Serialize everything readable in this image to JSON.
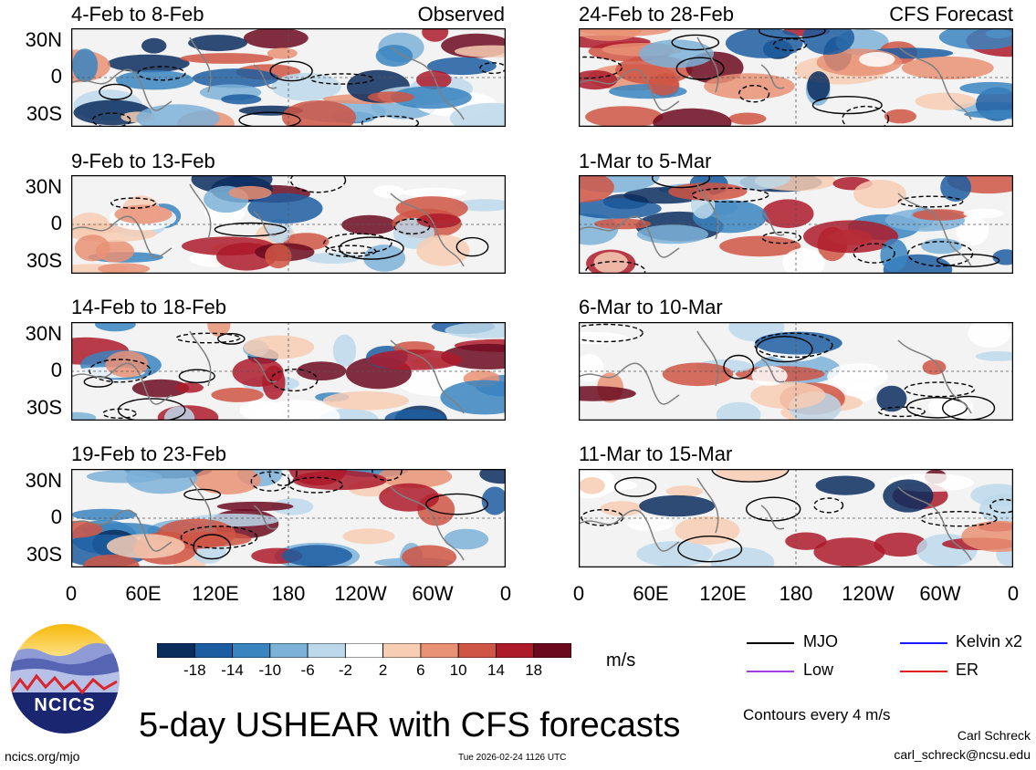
{
  "chart_data": {
    "type": "heatmap",
    "variable": "5-day USHEAR with CFS forecasts",
    "units": "m/s",
    "contour_note": "Contours every 4 m/s",
    "lat_ticks": [
      "30N",
      "0",
      "30S"
    ],
    "lon_ticks": [
      "0",
      "60E",
      "120E",
      "180",
      "120W",
      "60W",
      "0"
    ],
    "colorbar": {
      "labels": [
        "-18",
        "-14",
        "-10",
        "-6",
        "-2",
        "2",
        "6",
        "10",
        "14",
        "18"
      ],
      "colors": [
        "#0a2d5e",
        "#1c5da1",
        "#3a84c0",
        "#7cb2d8",
        "#bcd8ea",
        "#ffffff",
        "#f7cdb4",
        "#e99174",
        "#cf5544",
        "#ad1a2a",
        "#6b0a1f"
      ]
    },
    "panels": {
      "obs1": {
        "title": "4-Feb to 8-Feb",
        "tag": "Observed",
        "source": "Observed"
      },
      "obs2": {
        "title": "9-Feb to 13-Feb",
        "source": "Observed"
      },
      "obs3": {
        "title": "14-Feb to 18-Feb",
        "source": "Observed"
      },
      "obs4": {
        "title": "19-Feb to 23-Feb",
        "source": "Observed"
      },
      "fc1": {
        "title": "24-Feb to 28-Feb",
        "tag": "CFS Forecast",
        "source": "CFS Forecast"
      },
      "fc2": {
        "title": "1-Mar to 5-Mar",
        "source": "CFS Forecast"
      },
      "fc3": {
        "title": "6-Mar to 10-Mar",
        "source": "CFS Forecast"
      },
      "fc4": {
        "title": "11-Mar to 15-Mar",
        "source": "CFS Forecast"
      }
    },
    "legend": [
      {
        "label": "MJO",
        "color": "#000000"
      },
      {
        "label": "Kelvin x2",
        "color": "#1a1aff"
      },
      {
        "label": "Low",
        "color": "#a040e0"
      },
      {
        "label": "ER",
        "color": "#e02020"
      }
    ]
  },
  "header": {
    "main_title": "5-day USHEAR with CFS forecasts",
    "logo_text": "NCICS"
  },
  "footer": {
    "site": "ncics.org/mjo",
    "timestamp": "Tue 2026-02-24 1126 UTC",
    "author": "Carl Schreck",
    "email": "carl_schreck@ncsu.edu"
  }
}
